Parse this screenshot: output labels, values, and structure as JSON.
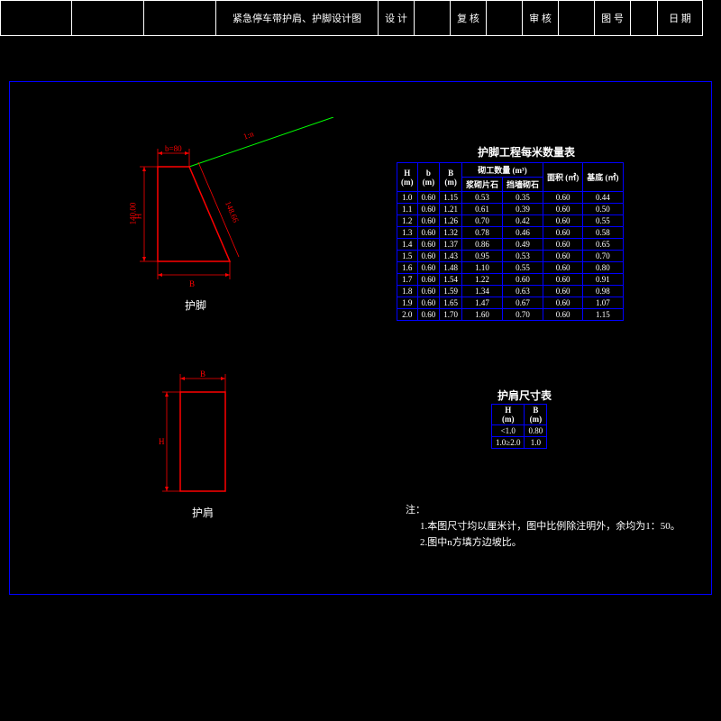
{
  "colors": {
    "bg": "#000000",
    "frame": "#0000ff",
    "shape": "#ff0000",
    "dim": "#ff0000",
    "slope": "#00ff00",
    "text": "#ffffff"
  },
  "drawing1": {
    "label": "护脚",
    "dims": {
      "top": "b=80",
      "slope": "1:n",
      "rightHyp": "148.66",
      "leftVert": "140.00",
      "bottom": "B"
    }
  },
  "drawing2": {
    "label": "护肩",
    "dims": {
      "top": "B",
      "left": "H"
    }
  },
  "table1": {
    "title": "护脚工程每米数量表",
    "headers": {
      "h": "H",
      "b": "b",
      "B": "B",
      "qty": "砌工数量 (m³)",
      "sub1": "浆砌片石",
      "sub2": "挡墙砌石",
      "area": "面积 (㎡)",
      "base": "基底 (㎡)",
      "uh": "(m)",
      "ub": "(m)",
      "uB": "(m)"
    },
    "rows": [
      [
        "1.0",
        "0.60",
        "1.15",
        "0.53",
        "0.35",
        "0.60",
        "0.44"
      ],
      [
        "1.1",
        "0.60",
        "1.21",
        "0.61",
        "0.39",
        "0.60",
        "0.50"
      ],
      [
        "1.2",
        "0.60",
        "1.26",
        "0.70",
        "0.42",
        "0.60",
        "0.55"
      ],
      [
        "1.3",
        "0.60",
        "1.32",
        "0.78",
        "0.46",
        "0.60",
        "0.58"
      ],
      [
        "1.4",
        "0.60",
        "1.37",
        "0.86",
        "0.49",
        "0.60",
        "0.65"
      ],
      [
        "1.5",
        "0.60",
        "1.43",
        "0.95",
        "0.53",
        "0.60",
        "0.70"
      ],
      [
        "1.6",
        "0.60",
        "1.48",
        "1.10",
        "0.55",
        "0.60",
        "0.80"
      ],
      [
        "1.7",
        "0.60",
        "1.54",
        "1.22",
        "0.60",
        "0.60",
        "0.91"
      ],
      [
        "1.8",
        "0.60",
        "1.59",
        "1.34",
        "0.63",
        "0.60",
        "0.98"
      ],
      [
        "1.9",
        "0.60",
        "1.65",
        "1.47",
        "0.67",
        "0.60",
        "1.07"
      ],
      [
        "2.0",
        "0.60",
        "1.70",
        "1.60",
        "0.70",
        "0.60",
        "1.15"
      ]
    ]
  },
  "table2": {
    "title": "护肩尺寸表",
    "headers": {
      "h": "H",
      "b": "B",
      "uh": "(m)",
      "ub": "(m)"
    },
    "rows": [
      [
        "<1.0",
        "0.80"
      ],
      [
        "1.0≥2.0",
        "1.0"
      ]
    ]
  },
  "notes": {
    "head": "注：",
    "n1": "1.本图尺寸均以厘米计，图中比例除注明外，余均为1：50。",
    "n2": "2.图中n方填方边坡比。"
  },
  "titleblock": {
    "main": "紧急停车带护肩、护脚设计图",
    "c1": "设 计",
    "c2": "复 核",
    "c3": "审 核",
    "c4": "图 号",
    "c5": "日 期"
  }
}
